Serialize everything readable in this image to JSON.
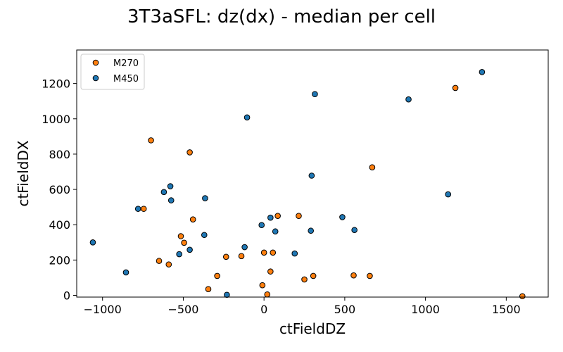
{
  "chart_data": {
    "type": "scatter",
    "title": "3T3aSFL: dz(dx) - median per cell",
    "xlabel": "ctFieldDZ",
    "ylabel": "ctFieldDX",
    "xlim": [
      -1160,
      1760
    ],
    "ylim": [
      -10,
      1390
    ],
    "xticks": [
      -1000,
      -500,
      0,
      500,
      1000,
      1500
    ],
    "xtick_labels": [
      "−1000",
      "−500",
      "0",
      "500",
      "1000",
      "1500"
    ],
    "yticks": [
      0,
      200,
      400,
      600,
      800,
      1000,
      1200
    ],
    "ytick_labels": [
      "0",
      "200",
      "400",
      "600",
      "800",
      "1000",
      "1200"
    ],
    "grid": false,
    "legend": "top-left",
    "series": [
      {
        "name": "M270",
        "color": "#ff7f0e",
        "points": [
          [
            -700,
            878
          ],
          [
            -460,
            810
          ],
          [
            670,
            725
          ],
          [
            1185,
            1175
          ],
          [
            -440,
            430
          ],
          [
            -515,
            335
          ],
          [
            -495,
            298
          ],
          [
            -745,
            490
          ],
          [
            -650,
            195
          ],
          [
            -590,
            175
          ],
          [
            -235,
            218
          ],
          [
            -140,
            222
          ],
          [
            0,
            242
          ],
          [
            55,
            242
          ],
          [
            85,
            450
          ],
          [
            215,
            450
          ],
          [
            -290,
            110
          ],
          [
            -345,
            35
          ],
          [
            -10,
            57
          ],
          [
            20,
            5
          ],
          [
            40,
            135
          ],
          [
            250,
            90
          ],
          [
            305,
            110
          ],
          [
            555,
            113
          ],
          [
            655,
            110
          ],
          [
            1600,
            -5
          ]
        ]
      },
      {
        "name": "M450",
        "color": "#1f77b4",
        "points": [
          [
            1350,
            1265
          ],
          [
            315,
            1140
          ],
          [
            895,
            1110
          ],
          [
            -105,
            1008
          ],
          [
            295,
            678
          ],
          [
            1140,
            572
          ],
          [
            -580,
            618
          ],
          [
            -620,
            585
          ],
          [
            -575,
            538
          ],
          [
            -365,
            550
          ],
          [
            -780,
            490
          ],
          [
            485,
            443
          ],
          [
            40,
            440
          ],
          [
            -15,
            398
          ],
          [
            70,
            362
          ],
          [
            290,
            366
          ],
          [
            560,
            370
          ],
          [
            -370,
            342
          ],
          [
            -120,
            273
          ],
          [
            -460,
            258
          ],
          [
            -525,
            233
          ],
          [
            190,
            237
          ],
          [
            -1060,
            300
          ],
          [
            -855,
            130
          ],
          [
            -230,
            3
          ]
        ]
      }
    ]
  }
}
